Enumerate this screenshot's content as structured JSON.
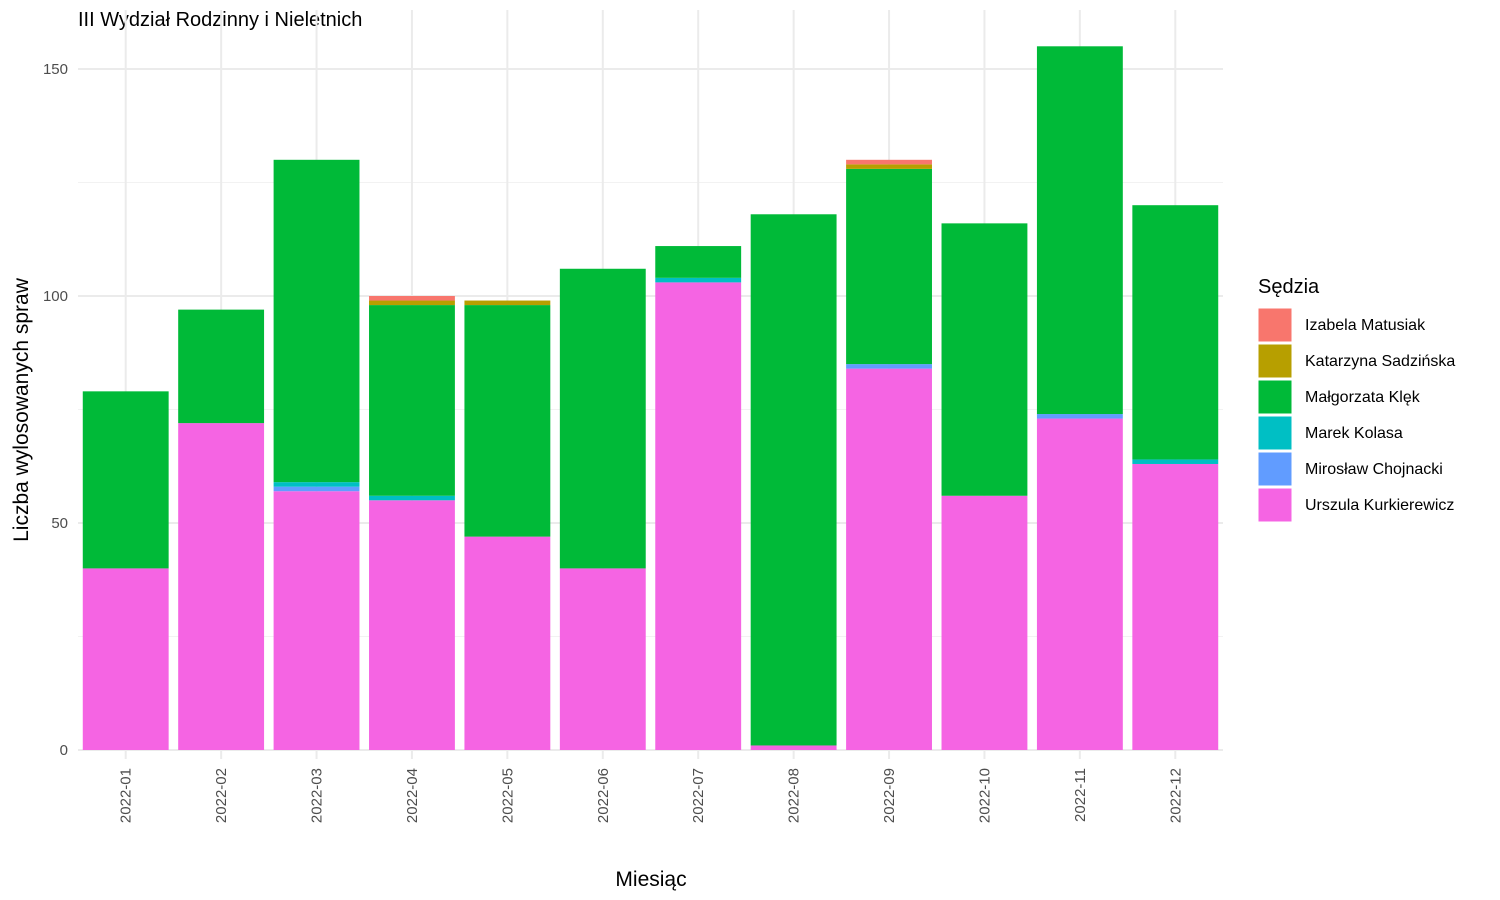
{
  "chart_data": {
    "type": "bar",
    "stacked": true,
    "title": "III Wydział Rodzinny i Nieletnich",
    "xlabel": "Miesiąc",
    "ylabel": "Liczba wylosowanych spraw",
    "ylim": [
      0,
      160
    ],
    "yticks": [
      0,
      50,
      100,
      150
    ],
    "grid": true,
    "legend_title": "Sędzia",
    "legend_position": "right",
    "categories": [
      "2022-01",
      "2022-02",
      "2022-03",
      "2022-04",
      "2022-05",
      "2022-06",
      "2022-07",
      "2022-08",
      "2022-09",
      "2022-10",
      "2022-11",
      "2022-12"
    ],
    "series": [
      {
        "name": "Urszula Kurkierewicz",
        "color": "#F564E3",
        "values": [
          40,
          72,
          57,
          55,
          47,
          40,
          103,
          1,
          84,
          56,
          73,
          63
        ]
      },
      {
        "name": "Mirosław Chojnacki",
        "color": "#619CFF",
        "values": [
          0,
          0,
          1,
          0,
          0,
          0,
          0,
          0,
          1,
          0,
          1,
          0
        ]
      },
      {
        "name": "Marek Kolasa",
        "color": "#00BFC4",
        "values": [
          0,
          0,
          1,
          1,
          0,
          0,
          1,
          0,
          0,
          0,
          0,
          1
        ]
      },
      {
        "name": "Małgorzata Klęk",
        "color": "#00BA38",
        "values": [
          39,
          25,
          71,
          42,
          51,
          66,
          7,
          117,
          43,
          60,
          81,
          56
        ]
      },
      {
        "name": "Katarzyna Sadzińska",
        "color": "#B79F00",
        "values": [
          0,
          0,
          0,
          1,
          1,
          0,
          0,
          0,
          1,
          0,
          0,
          0
        ]
      },
      {
        "name": "Izabela Matusiak",
        "color": "#F8766D",
        "values": [
          0,
          0,
          0,
          1,
          0,
          0,
          0,
          0,
          1,
          0,
          0,
          0
        ]
      }
    ],
    "legend_order": [
      "Izabela Matusiak",
      "Katarzyna Sadzińska",
      "Małgorzata Klęk",
      "Marek Kolasa",
      "Mirosław Chojnacki",
      "Urszula Kurkierewicz"
    ]
  }
}
